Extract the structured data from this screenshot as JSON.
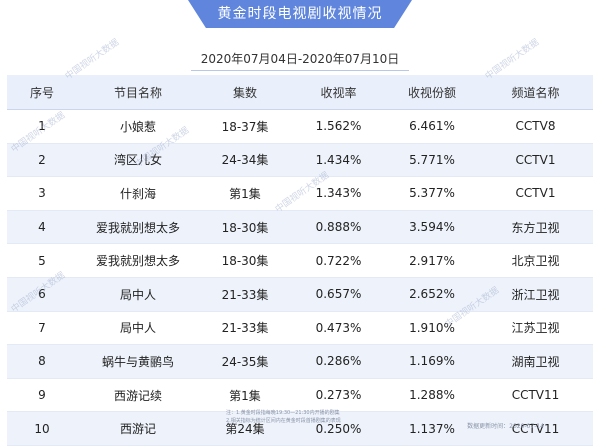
{
  "title": "黄金时段电视剧收视情况",
  "date_range": "2020年07月04日-2020年07月10日",
  "columns": [
    "序号",
    "节目名称",
    "集数",
    "收视率",
    "收视份额",
    "频道名称"
  ],
  "rows": [
    {
      "no": "1",
      "name": "小娘惹",
      "episodes": "18-37集",
      "rating": "1.562%",
      "share": "6.461%",
      "channel": "CCTV8"
    },
    {
      "no": "2",
      "name": "湾区儿女",
      "episodes": "24-34集",
      "rating": "1.434%",
      "share": "5.771%",
      "channel": "CCTV1"
    },
    {
      "no": "3",
      "name": "什刹海",
      "episodes": "第1集",
      "rating": "1.343%",
      "share": "5.377%",
      "channel": "CCTV1"
    },
    {
      "no": "4",
      "name": "爱我就别想太多",
      "episodes": "18-30集",
      "rating": "0.888%",
      "share": "3.594%",
      "channel": "东方卫视"
    },
    {
      "no": "5",
      "name": "爱我就别想太多",
      "episodes": "18-30集",
      "rating": "0.722%",
      "share": "2.917%",
      "channel": "北京卫视"
    },
    {
      "no": "6",
      "name": "局中人",
      "episodes": "21-33集",
      "rating": "0.657%",
      "share": "2.652%",
      "channel": "浙江卫视"
    },
    {
      "no": "7",
      "name": "局中人",
      "episodes": "21-33集",
      "rating": "0.473%",
      "share": "1.910%",
      "channel": "江苏卫视"
    },
    {
      "no": "8",
      "name": "蜗牛与黄鹂鸟",
      "episodes": "24-35集",
      "rating": "0.286%",
      "share": "1.169%",
      "channel": "湖南卫视"
    },
    {
      "no": "9",
      "name": "西游记续",
      "episodes": "第1集",
      "rating": "0.273%",
      "share": "1.288%",
      "channel": "CCTV11"
    },
    {
      "no": "10",
      "name": "西游记",
      "episodes": "第24集",
      "rating": "0.250%",
      "share": "1.137%",
      "channel": "CCTV11"
    }
  ],
  "notes": [
    "注：1.黄金时段指每晚19:30—21:30内开播的剧集",
    "2.相关指标为统计区间内在黄金时段首播剧集的表现"
  ],
  "footer": "数据更新时间：2020-07-14",
  "watermark": "中国视听大数据"
}
